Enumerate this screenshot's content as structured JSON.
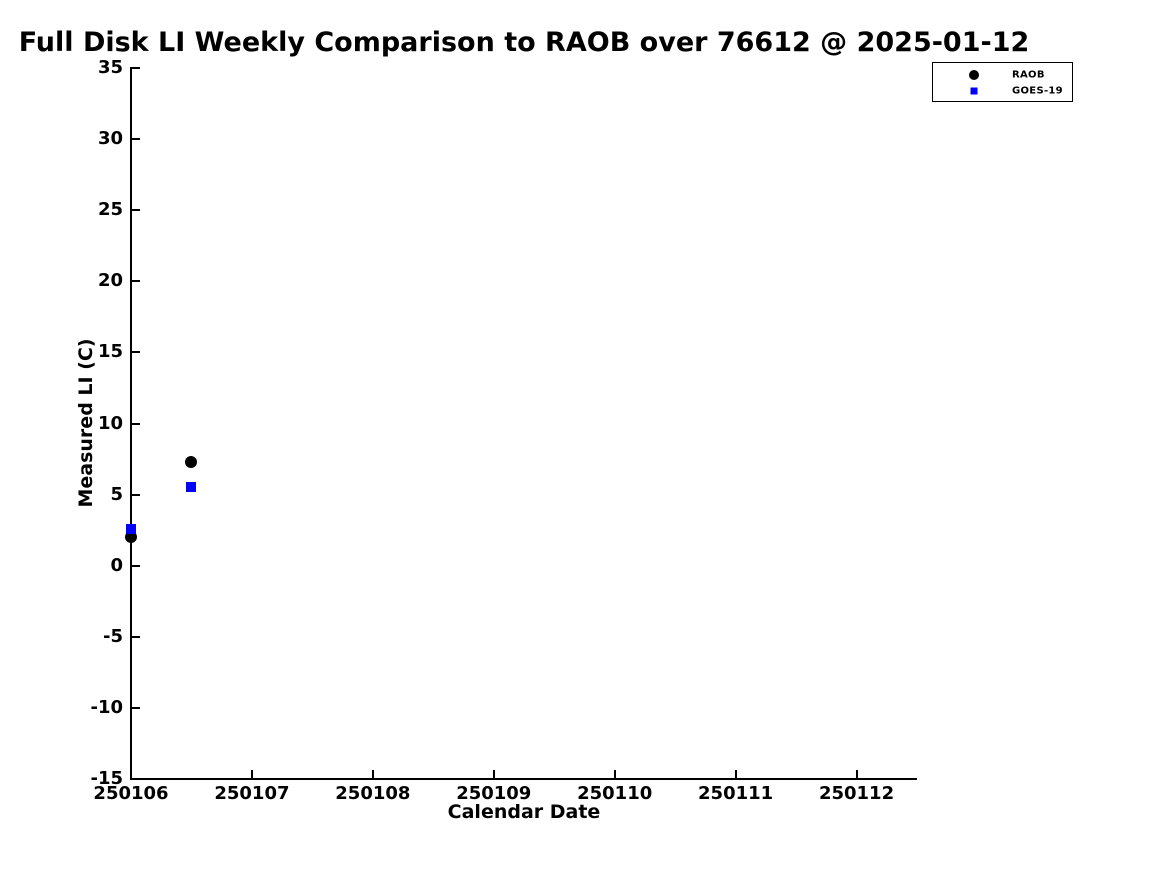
{
  "chart_data": {
    "type": "scatter",
    "title": "Full Disk LI Weekly Comparison to RAOB over 76612 @ 2025-01-12",
    "xlabel": "Calendar Date",
    "ylabel": "Measured LI (C)",
    "xlim": [
      250106,
      250112.5
    ],
    "ylim": [
      -15,
      35
    ],
    "x_ticks": [
      250106,
      250107,
      250108,
      250109,
      250110,
      250111,
      250112
    ],
    "y_ticks": [
      35,
      30,
      25,
      20,
      15,
      10,
      5,
      0,
      -5,
      -10,
      -15
    ],
    "grid": false,
    "tick_direction": "in",
    "legend_position": "top-right",
    "series": [
      {
        "name": "RAOB",
        "marker": "circle",
        "color": "#000000",
        "points": [
          [
            250106.0,
            2.0
          ],
          [
            250106.5,
            7.3
          ]
        ]
      },
      {
        "name": "GOES-19",
        "marker": "square",
        "color": "#0000ff",
        "points": [
          [
            250106.0,
            2.6
          ],
          [
            250106.5,
            5.5
          ]
        ]
      }
    ]
  },
  "legend": {
    "entries": [
      {
        "label": "RAOB",
        "marker": "circle",
        "color": "#000000"
      },
      {
        "label": "GOES-19",
        "marker": "square",
        "color": "#0000ff"
      }
    ]
  },
  "colors": {
    "background": "#ffffff",
    "axis": "#000000",
    "raob": "#000000",
    "goes19": "#0000ff"
  }
}
